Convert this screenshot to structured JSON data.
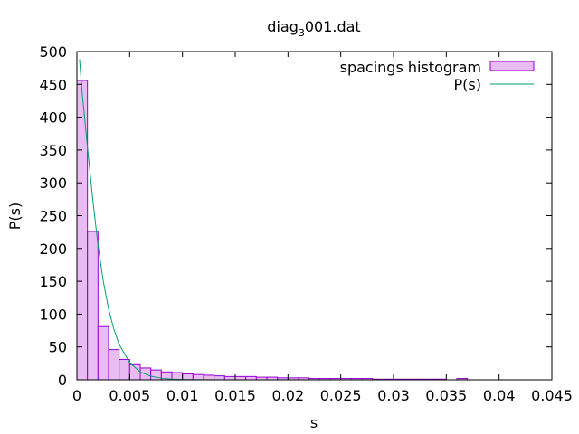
{
  "chart_data": {
    "type": "bar",
    "title_main": "diag",
    "title_sub": "3",
    "title_tail": "001.dat",
    "xlabel": "s",
    "ylabel": "P(s)",
    "xlim": [
      0,
      0.045
    ],
    "ylim": [
      0,
      500
    ],
    "xticks": [
      0,
      0.005,
      0.01,
      0.015,
      0.02,
      0.025,
      0.03,
      0.035,
      0.04,
      0.045
    ],
    "xtick_labels": [
      "0",
      "0.005",
      "0.01",
      "0.015",
      "0.02",
      "0.025",
      "0.03",
      "0.035",
      "0.04",
      "0.045"
    ],
    "yticks": [
      0,
      50,
      100,
      150,
      200,
      250,
      300,
      350,
      400,
      450,
      500
    ],
    "ytick_labels": [
      "0",
      "50",
      "100",
      "150",
      "200",
      "250",
      "300",
      "350",
      "400",
      "450",
      "500"
    ],
    "grid": false,
    "legend_position": "top-right",
    "bin_width": 0.001,
    "histogram": {
      "name": "spacings histogram",
      "fill_color": "#e8bcf0",
      "edge_color": "#9400d3",
      "bin_left_edges": [
        0.0,
        0.001,
        0.002,
        0.003,
        0.004,
        0.005,
        0.006,
        0.007,
        0.008,
        0.009,
        0.01,
        0.011,
        0.012,
        0.013,
        0.014,
        0.015,
        0.016,
        0.017,
        0.018,
        0.019,
        0.02,
        0.021,
        0.022,
        0.023,
        0.024,
        0.025,
        0.026,
        0.027,
        0.028,
        0.029,
        0.03,
        0.031,
        0.032,
        0.033,
        0.034,
        0.035,
        0.036
      ],
      "values": [
        456,
        226,
        81,
        46,
        31,
        23,
        18,
        15,
        12,
        11,
        9,
        8,
        7,
        6,
        5,
        5,
        5,
        4,
        4,
        3,
        3,
        3,
        2,
        2,
        2,
        2,
        2,
        2,
        1,
        1,
        1,
        1,
        1,
        1,
        1,
        0,
        2
      ]
    },
    "curve": {
      "name": "P(s)",
      "color": "#009e73",
      "type": "line",
      "x": [
        0.00025,
        0.0005,
        0.001,
        0.0015,
        0.002,
        0.0025,
        0.003,
        0.0035,
        0.004,
        0.005,
        0.006,
        0.007,
        0.008,
        0.009,
        0.01,
        0.012,
        0.015,
        0.02
      ],
      "y": [
        488,
        437,
        355,
        275,
        205,
        150,
        108,
        77,
        54,
        26,
        12,
        5.5,
        2.5,
        1.1,
        0.5,
        0.1,
        0,
        0
      ]
    }
  }
}
